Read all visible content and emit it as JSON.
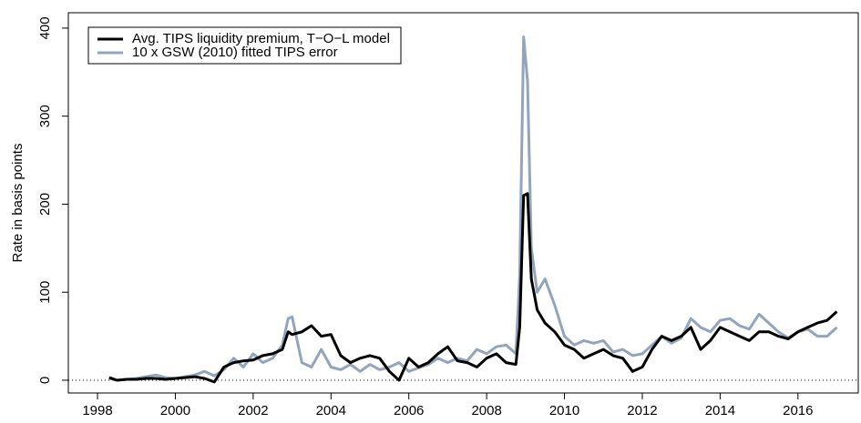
{
  "chart_data": {
    "type": "line",
    "y_label": "Rate in basis points",
    "x": [
      1998.3,
      1998.5,
      1998.75,
      1999.0,
      1999.25,
      1999.5,
      1999.75,
      2000.0,
      2000.25,
      2000.5,
      2000.75,
      2001.0,
      2001.25,
      2001.5,
      2001.75,
      2002.0,
      2002.25,
      2002.5,
      2002.75,
      2002.9,
      2003.0,
      2003.25,
      2003.5,
      2003.75,
      2004.0,
      2004.25,
      2004.5,
      2004.75,
      2005.0,
      2005.25,
      2005.5,
      2005.75,
      2006.0,
      2006.25,
      2006.5,
      2006.75,
      2007.0,
      2007.25,
      2007.5,
      2007.75,
      2008.0,
      2008.25,
      2008.5,
      2008.75,
      2008.85,
      2008.95,
      2009.05,
      2009.15,
      2009.3,
      2009.5,
      2009.75,
      2010.0,
      2010.25,
      2010.5,
      2010.75,
      2011.0,
      2011.25,
      2011.5,
      2011.75,
      2012.0,
      2012.25,
      2012.5,
      2012.75,
      2013.0,
      2013.25,
      2013.5,
      2013.75,
      2014.0,
      2014.25,
      2014.5,
      2014.75,
      2015.0,
      2015.25,
      2015.5,
      2015.75,
      2016.0,
      2016.25,
      2016.5,
      2016.75,
      2017.0
    ],
    "series": [
      {
        "name": "10 x GSW (2010) fitted TIPS error",
        "color": "#93a5bd",
        "width": 3,
        "values": [
          2,
          0,
          1,
          2,
          4,
          6,
          3,
          2,
          4,
          6,
          10,
          5,
          12,
          25,
          15,
          30,
          20,
          25,
          40,
          70,
          72,
          20,
          15,
          35,
          15,
          12,
          18,
          10,
          18,
          12,
          15,
          20,
          10,
          14,
          18,
          25,
          20,
          25,
          22,
          35,
          30,
          38,
          40,
          30,
          120,
          390,
          340,
          150,
          100,
          115,
          85,
          50,
          40,
          45,
          42,
          45,
          32,
          35,
          28,
          30,
          40,
          50,
          42,
          48,
          70,
          60,
          55,
          68,
          70,
          62,
          58,
          75,
          65,
          55,
          48,
          55,
          58,
          50,
          50,
          60
        ]
      },
      {
        "name": "Avg. TIPS liquidity premium, T−O−L model",
        "color": "#000000",
        "width": 3,
        "values": [
          3,
          0,
          1,
          1,
          2,
          2,
          1,
          2,
          3,
          4,
          2,
          -2,
          15,
          20,
          22,
          23,
          28,
          30,
          35,
          55,
          52,
          55,
          62,
          50,
          52,
          28,
          20,
          25,
          28,
          25,
          10,
          0,
          25,
          15,
          20,
          30,
          38,
          22,
          20,
          15,
          25,
          30,
          20,
          18,
          60,
          210,
          212,
          115,
          80,
          65,
          55,
          40,
          35,
          25,
          30,
          35,
          28,
          25,
          10,
          15,
          35,
          50,
          45,
          50,
          60,
          35,
          45,
          60,
          55,
          50,
          45,
          55,
          55,
          50,
          47,
          55,
          60,
          65,
          68,
          78
        ]
      }
    ],
    "legend_order": [
      1,
      0
    ],
    "xlim": [
      1997.25,
      2017.55
    ],
    "ylim": [
      -14.5,
      417.5
    ],
    "xticks": [
      1998,
      2000,
      2002,
      2004,
      2006,
      2008,
      2010,
      2012,
      2014,
      2016
    ],
    "yticks": [
      0,
      100,
      200,
      300,
      400
    ],
    "hline": 0
  }
}
